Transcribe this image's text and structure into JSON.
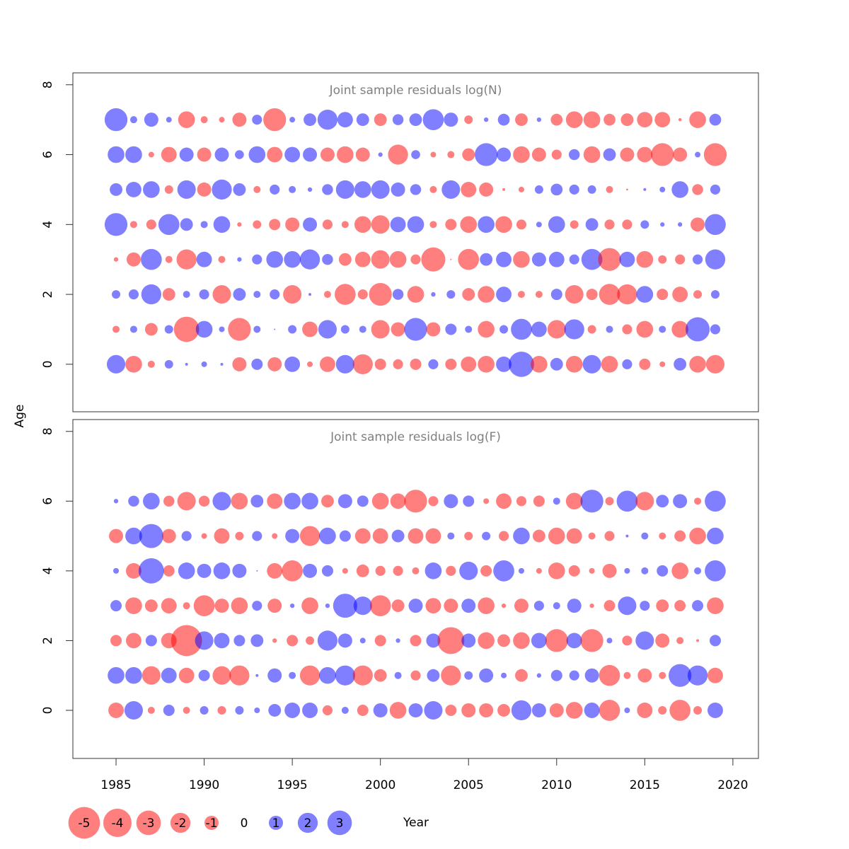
{
  "chart_data": [
    {
      "type": "bubble",
      "title": "Joint sample residuals log(N)",
      "x": [
        1985,
        1986,
        1987,
        1988,
        1989,
        1990,
        1991,
        1992,
        1993,
        1994,
        1995,
        1996,
        1997,
        1998,
        1999,
        2000,
        2001,
        2002,
        2003,
        2004,
        2005,
        2006,
        2007,
        2008,
        2009,
        2010,
        2011,
        2012,
        2013,
        2014,
        2015,
        2016,
        2017,
        2018,
        2019
      ],
      "y": [
        0,
        1,
        2,
        3,
        4,
        5,
        6,
        7
      ],
      "values": [
        [
          1.7,
          -1.4,
          -0.25,
          0.36,
          0.04,
          0.16,
          0.04,
          -1,
          0.64,
          -1,
          1.2,
          -0.16,
          -1.2,
          1.7,
          -2,
          -0.64,
          -0.5,
          -0.64,
          0.5,
          -0.64,
          -1.2,
          -1.4,
          1.2,
          3.2,
          -1.4,
          0.8,
          -1.4,
          1.7,
          -1.4,
          0.5,
          -0.64,
          -0.16,
          0.8,
          -1.4,
          -1.7
        ],
        [
          -0.25,
          0.25,
          -0.8,
          0.36,
          -3.2,
          1.4,
          0.16,
          -2.6,
          0.25,
          0.01,
          0.36,
          -1.2,
          1.7,
          0.36,
          0.25,
          -1.7,
          -1,
          2.6,
          -1,
          0.64,
          0.25,
          -1.4,
          0.36,
          2.2,
          1.2,
          -1.7,
          2,
          -0.36,
          0.25,
          -0.5,
          -1.4,
          0.25,
          -1.4,
          2.9,
          0.5
        ],
        [
          0.36,
          0.5,
          2,
          -0.8,
          0.25,
          0.5,
          -1.7,
          0.8,
          0.25,
          0.5,
          -1.7,
          0.04,
          -0.25,
          -2.2,
          -0.5,
          -2.6,
          0.6,
          -1.4,
          0.1,
          0.36,
          -0.8,
          -1.4,
          1.2,
          -0.25,
          -0.25,
          0.64,
          -1.7,
          -0.64,
          -2.2,
          -2,
          1.4,
          -0.64,
          -1.2,
          -0.36,
          0.36
        ],
        [
          -0.1,
          -1,
          2.2,
          -0.25,
          -2,
          1.2,
          -0.25,
          0.1,
          0.5,
          1.4,
          1.4,
          2,
          0.6,
          -0.8,
          -1.2,
          -1.7,
          -1.4,
          -0.5,
          -2.9,
          -0.01,
          -2.2,
          0.8,
          1.2,
          -1.4,
          1,
          1.2,
          0.5,
          2.2,
          -2.6,
          1.2,
          -1.4,
          -0.36,
          -0.5,
          0.5,
          2
        ],
        [
          2.6,
          -0.25,
          -0.5,
          2.2,
          0.8,
          0.25,
          1.4,
          -0.1,
          -0.36,
          -0.64,
          -1,
          1,
          -0.5,
          -0.25,
          -1.4,
          -1.7,
          1.2,
          1.4,
          -0.25,
          -0.64,
          -1.4,
          1.4,
          -1.4,
          -0.5,
          0.16,
          1.4,
          -0.36,
          0.8,
          -0.5,
          -0.5,
          0.36,
          0.1,
          0.1,
          -1,
          2.2
        ],
        [
          0.8,
          1.2,
          1.4,
          -0.36,
          1.7,
          -1,
          2,
          0.8,
          -0.25,
          0.5,
          0.25,
          0.1,
          0.6,
          1.7,
          1.4,
          1.7,
          1,
          0.6,
          -0.25,
          1.7,
          -1.2,
          -1,
          -0.04,
          -0.16,
          0.36,
          0.7,
          0.5,
          0.36,
          -0.25,
          -0.02,
          0.04,
          0.16,
          1.4,
          -0.6,
          0.5
        ],
        [
          1.4,
          1.4,
          -0.16,
          -1.2,
          1,
          -1,
          1,
          0.4,
          1.4,
          -1.2,
          1.2,
          1,
          -1,
          -1.4,
          -1,
          0.1,
          -2,
          0.4,
          -0.16,
          -0.25,
          -0.8,
          2.6,
          1,
          -1.4,
          -1,
          -0.5,
          0.6,
          -1.4,
          0.8,
          -1,
          -1.2,
          -2.6,
          -1,
          0.16,
          -2.6
        ],
        [
          2.6,
          0.25,
          1,
          0.16,
          -1.4,
          -0.25,
          -0.16,
          -1,
          0.5,
          -2.6,
          0.16,
          0.8,
          2,
          1.2,
          0.8,
          -0.8,
          0.6,
          0.8,
          2.2,
          1,
          -0.36,
          0.1,
          0.7,
          -0.8,
          0.1,
          -0.7,
          -1.4,
          -1.4,
          -0.7,
          -0.8,
          -1.2,
          -1.2,
          -0.05,
          -1.4,
          0.7
        ]
      ],
      "negative_color": "#ff0000",
      "positive_color": "#0000ff",
      "xlim": [
        1982.55,
        2021.45
      ],
      "ylim": [
        -1.36,
        8.34
      ],
      "yticks": [
        0,
        2,
        4,
        6,
        8
      ]
    },
    {
      "type": "bubble",
      "title": "Joint sample residuals log(F)",
      "x": [
        1985,
        1986,
        1987,
        1988,
        1989,
        1990,
        1991,
        1992,
        1993,
        1994,
        1995,
        1996,
        1997,
        1998,
        1999,
        2000,
        2001,
        2002,
        2003,
        2004,
        2005,
        2006,
        2007,
        2008,
        2009,
        2010,
        2011,
        2012,
        2013,
        2014,
        2015,
        2016,
        2017,
        2018,
        2019
      ],
      "y": [
        0,
        1,
        2,
        3,
        4,
        5,
        6
      ],
      "values": [
        [
          -1.2,
          1.7,
          -0.25,
          0.64,
          -0.25,
          0.36,
          -0.36,
          0.36,
          0.16,
          0.8,
          1.2,
          1.2,
          -0.5,
          0.25,
          -0.64,
          1,
          -1.4,
          1,
          1.7,
          -0.64,
          -1,
          -1,
          -0.8,
          2,
          1,
          -1,
          -1.4,
          1.2,
          -2.2,
          0.16,
          -1.2,
          -0.36,
          -2.2,
          -0.36,
          1.2
        ],
        [
          1.4,
          1.4,
          -1.7,
          1.2,
          -1.2,
          0.64,
          -1.7,
          -2,
          0.04,
          1,
          0.25,
          -2,
          1.4,
          2,
          -2,
          -0.8,
          0.25,
          -0.5,
          0.8,
          -2,
          0.36,
          1,
          0.16,
          -0.8,
          0.1,
          0.64,
          0.5,
          1,
          -2.2,
          -0.25,
          -1,
          -0.25,
          2.6,
          2,
          -1.2
        ],
        [
          -0.64,
          -1.2,
          0.64,
          -1.2,
          -4.8,
          1.7,
          1.2,
          0.64,
          0.8,
          -0.1,
          -0.64,
          -0.36,
          2,
          1,
          0.16,
          -0.64,
          0.1,
          -0.64,
          1,
          -3.6,
          1,
          -1.4,
          -0.8,
          -1.4,
          1.2,
          -2.6,
          1.2,
          -2.6,
          0.16,
          -0.5,
          1.7,
          -1,
          -0.25,
          -0.04,
          0.64
        ],
        [
          0.64,
          -1.4,
          -0.8,
          -1.2,
          -0.25,
          -2.2,
          -1,
          -1.4,
          0.5,
          -1,
          0.1,
          -1.4,
          0.1,
          2.9,
          1.7,
          -2.2,
          -0.8,
          1,
          -1.2,
          -1,
          1,
          -1.4,
          -0.1,
          -1,
          0.5,
          0.25,
          1,
          -0.1,
          -0.64,
          1.7,
          0.5,
          -0.8,
          -0.64,
          0.64,
          -1.4
        ],
        [
          0.16,
          -1.2,
          3.2,
          -0.64,
          1.4,
          1,
          1.4,
          1,
          0.01,
          -1.2,
          -2.2,
          1,
          0.64,
          -0.16,
          -0.8,
          -0.5,
          -0.5,
          -0.25,
          1.4,
          -0.5,
          1.7,
          -0.64,
          2.2,
          0.16,
          -0.16,
          -1.4,
          -0.64,
          -0.16,
          -1,
          0.16,
          0.25,
          0.64,
          -1.4,
          0.25,
          2.2
        ],
        [
          -1,
          1.4,
          2.9,
          -1,
          0.5,
          -0.16,
          -1.2,
          -0.36,
          0.5,
          -0.16,
          1,
          -2,
          1.4,
          0.64,
          -1.2,
          -1.2,
          0.8,
          -1.2,
          -1.2,
          0.25,
          -0.36,
          0.36,
          -0.5,
          1.4,
          -0.8,
          -1.4,
          -1.2,
          -0.25,
          -0.5,
          0.04,
          0.25,
          -0.25,
          -0.64,
          -1.4,
          1.4
        ],
        [
          0.1,
          0.6,
          1.4,
          -0.6,
          -1.7,
          -0.6,
          1.7,
          -1.4,
          0.8,
          -1.2,
          1.4,
          1.4,
          -0.8,
          1,
          0.64,
          -1.4,
          -1.2,
          -2.6,
          -0.5,
          1,
          0.64,
          -0.16,
          -1.2,
          -0.5,
          -0.64,
          0.25,
          -1.4,
          2.6,
          -0.36,
          2.2,
          -1.7,
          0.8,
          1,
          -0.25,
          2.2
        ]
      ],
      "negative_color": "#ff0000",
      "positive_color": "#0000ff",
      "xlim": [
        1982.55,
        2021.45
      ],
      "ylim": [
        -1.38,
        8.34
      ],
      "yticks": [
        0,
        2,
        4,
        6,
        8
      ],
      "xticks": [
        1985,
        1990,
        1995,
        2000,
        2005,
        2010,
        2015,
        2020
      ]
    }
  ],
  "ylabel": "Age",
  "xlabel": "Year",
  "legend": {
    "values": [
      -5,
      -4,
      -3,
      -2,
      -1,
      0,
      1,
      2,
      3
    ]
  }
}
